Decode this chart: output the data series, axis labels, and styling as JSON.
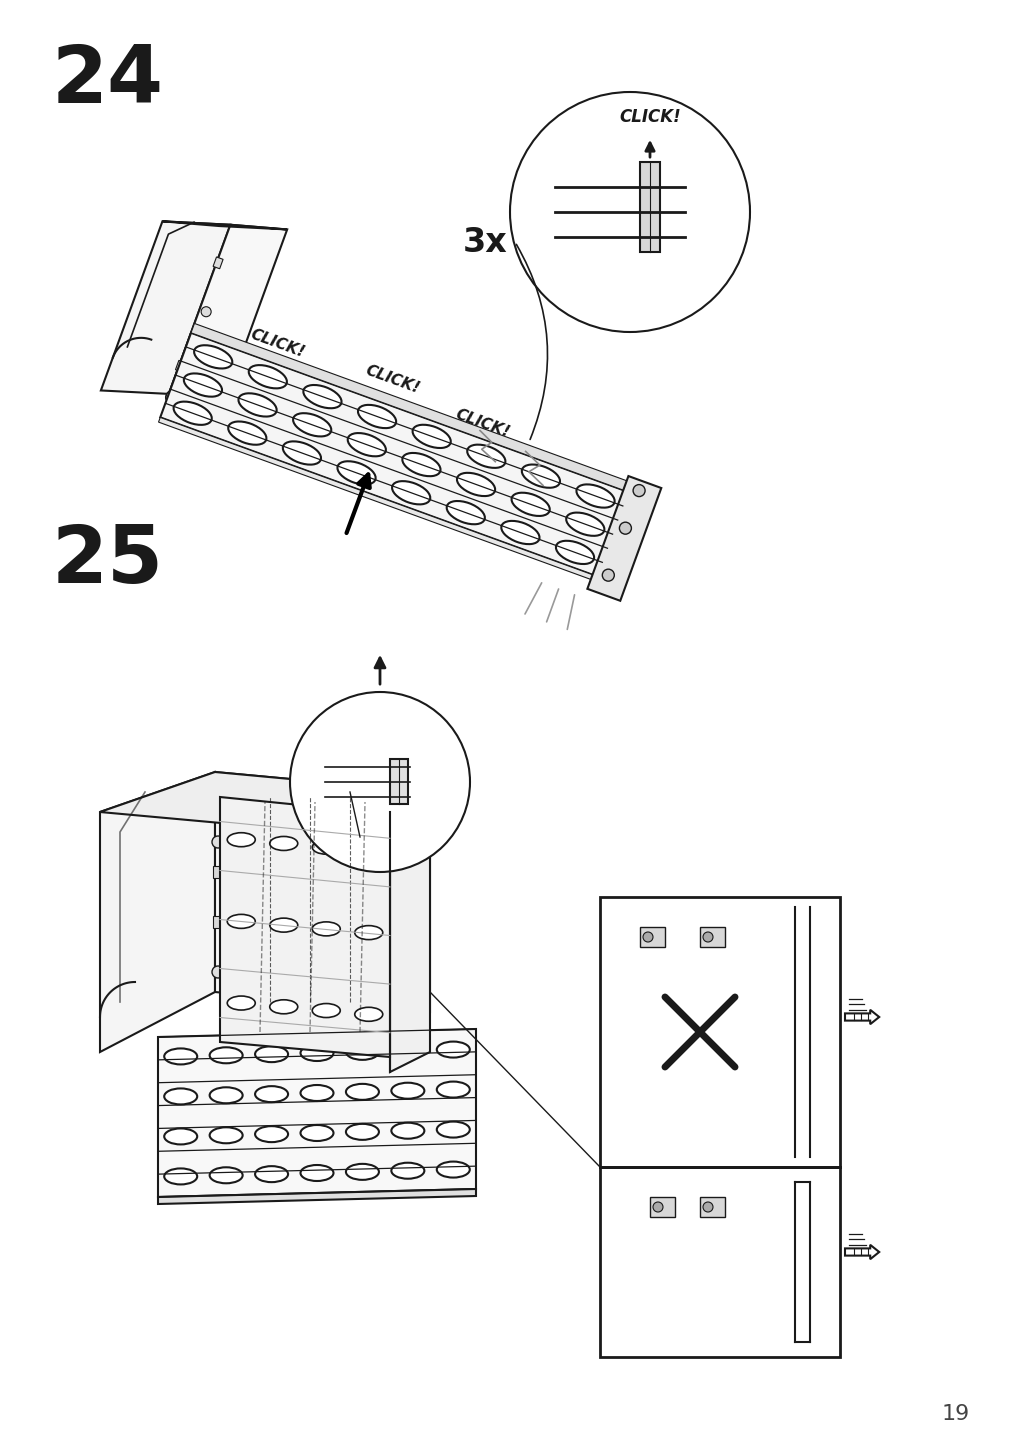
{
  "page_number": "19",
  "step1_number": "24",
  "step2_number": "25",
  "bg_color": "#ffffff",
  "line_color": "#1a1a1a",
  "multiplier": "3x"
}
